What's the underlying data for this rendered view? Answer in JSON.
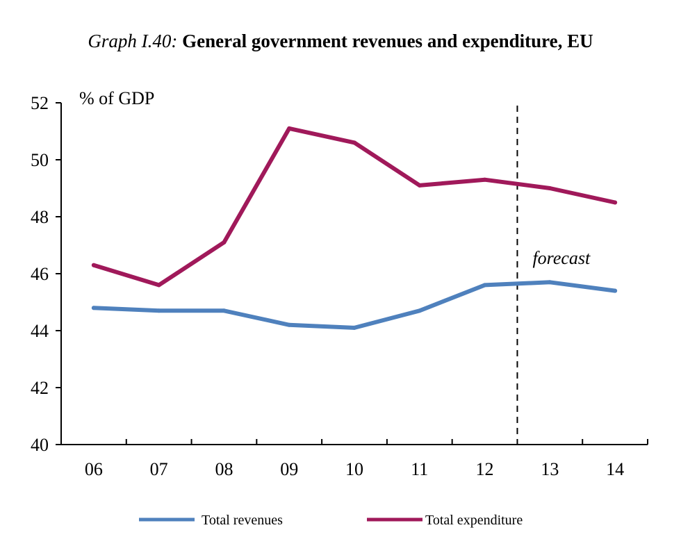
{
  "chart_data": {
    "type": "line",
    "title_prefix": "Graph I.40:",
    "title": "General government revenues and expenditure, EU",
    "ylabel": "% of GDP",
    "xlabel": "",
    "ylim": [
      40,
      52
    ],
    "yticks": [
      40,
      42,
      44,
      46,
      48,
      50,
      52
    ],
    "categories": [
      "06",
      "07",
      "08",
      "09",
      "10",
      "11",
      "12",
      "13",
      "14"
    ],
    "series": [
      {
        "name": "Total revenues",
        "color": "#4f81bd",
        "values": [
          44.8,
          44.7,
          44.7,
          44.2,
          44.1,
          44.7,
          45.6,
          45.7,
          45.4
        ]
      },
      {
        "name": "Total expenditure",
        "color": "#a0195a",
        "values": [
          46.3,
          45.6,
          47.1,
          51.1,
          50.6,
          49.1,
          49.3,
          49.0,
          48.5
        ]
      }
    ],
    "forecast_label": "forecast",
    "forecast_after_category": "12",
    "legend_position": "bottom",
    "grid": false
  }
}
